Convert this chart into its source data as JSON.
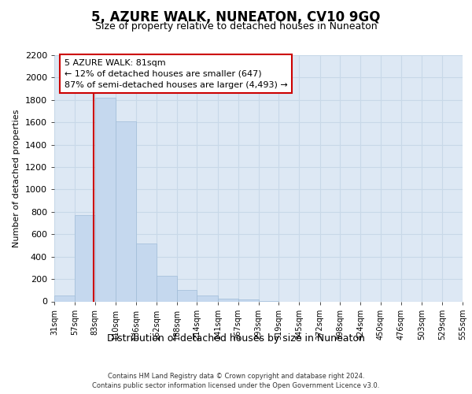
{
  "title": "5, AZURE WALK, NUNEATON, CV10 9GQ",
  "subtitle": "Size of property relative to detached houses in Nuneaton",
  "xlabel": "Distribution of detached houses by size in Nuneaton",
  "ylabel": "Number of detached properties",
  "footer_line1": "Contains HM Land Registry data © Crown copyright and database right 2024.",
  "footer_line2": "Contains public sector information licensed under the Open Government Licence v3.0.",
  "annotation_title": "5 AZURE WALK: 81sqm",
  "annotation_line1": "← 12% of detached houses are smaller (647)",
  "annotation_line2": "87% of semi-detached houses are larger (4,493) →",
  "property_size_sqm": 81,
  "bin_edges": [
    31,
    57,
    83,
    110,
    136,
    162,
    188,
    214,
    241,
    267,
    293,
    319,
    345,
    372,
    398,
    424,
    450,
    476,
    503,
    529,
    555
  ],
  "bar_heights": [
    50,
    770,
    1820,
    1610,
    520,
    230,
    100,
    55,
    25,
    15,
    5,
    0,
    0,
    0,
    0,
    0,
    0,
    0,
    0,
    0
  ],
  "bar_color": "#c5d8ee",
  "bar_edge_color": "#a0bcd8",
  "vline_color": "#cc0000",
  "grid_color": "#c8d8e8",
  "background_color": "#dde8f4",
  "ylim_max": 2200,
  "ytick_step": 200,
  "title_fontsize": 12,
  "subtitle_fontsize": 9,
  "ylabel_fontsize": 8,
  "xlabel_fontsize": 9,
  "ytick_fontsize": 8,
  "xtick_fontsize": 7,
  "footer_fontsize": 6,
  "annot_fontsize": 8
}
